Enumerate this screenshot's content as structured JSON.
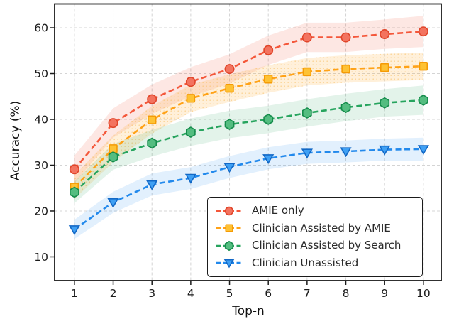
{
  "figure": {
    "background": "#ffffff",
    "text_color": "#1a1a1a",
    "grid_color": "#d4d4d4",
    "spine_color": "#1a1a1a"
  },
  "chart_data": {
    "type": "line",
    "title": "",
    "xlabel": "Top-n",
    "ylabel": "Accuracy (%)",
    "x": [
      1,
      2,
      3,
      4,
      5,
      6,
      7,
      8,
      9,
      10
    ],
    "xticks": [
      1,
      2,
      3,
      4,
      5,
      6,
      7,
      8,
      9,
      10
    ],
    "yticks": [
      10,
      20,
      30,
      40,
      50,
      60
    ],
    "xlim": [
      0.49,
      10.46
    ],
    "ylim": [
      4.8,
      65.2
    ],
    "grid": true,
    "line_style": "dashed",
    "legend_position": "lower right",
    "series": [
      {
        "name": "AMIE only",
        "marker": "circle",
        "color": "#f4573a",
        "marker_fill": "#f3735f",
        "marker_edge": "#e0452a",
        "band_color": "rgba(244,87,58,0.14)",
        "values": [
          29.1,
          39.2,
          44.4,
          48.2,
          51.0,
          55.1,
          57.9,
          57.9,
          58.6,
          59.2
        ],
        "band_halfwidth": [
          3.0,
          3.2,
          3.2,
          3.2,
          3.2,
          3.2,
          3.2,
          3.2,
          3.2,
          3.4
        ]
      },
      {
        "name": "Clinician Assisted by AMIE",
        "marker": "square",
        "color": "#ffa217",
        "marker_fill": "#fec234",
        "marker_edge": "#f59b05",
        "band_color": "rgba(255,162,23,0.16)",
        "hatch": "dots",
        "hatch_color": "rgba(245,185,90,0.55)",
        "values": [
          25.2,
          33.6,
          39.9,
          44.6,
          46.8,
          48.8,
          50.4,
          51.0,
          51.3,
          51.6
        ],
        "band_halfwidth": [
          2.6,
          2.9,
          3.0,
          3.0,
          3.0,
          3.0,
          3.0,
          3.0,
          3.0,
          3.0
        ]
      },
      {
        "name": "Clinician Assisted by Search",
        "marker": "hexagon",
        "color": "#27a45e",
        "marker_fill": "#54bd80",
        "marker_edge": "#168c4c",
        "band_color": "rgba(39,164,94,0.13)",
        "values": [
          24.1,
          31.8,
          34.8,
          37.2,
          38.9,
          40.0,
          41.4,
          42.6,
          43.6,
          44.2
        ],
        "band_halfwidth": [
          2.4,
          2.8,
          2.9,
          3.0,
          3.0,
          3.0,
          3.0,
          3.0,
          3.0,
          3.2
        ]
      },
      {
        "name": "Clinician Unassisted",
        "marker": "triangle-down",
        "color": "#2289ec",
        "marker_fill": "#3fa0f4",
        "marker_edge": "#1268c6",
        "band_color": "rgba(34,137,236,0.13)",
        "values": [
          16.0,
          21.9,
          25.8,
          27.2,
          29.6,
          31.5,
          32.7,
          33.0,
          33.4,
          33.5
        ],
        "band_halfwidth": [
          2.1,
          2.3,
          2.4,
          2.4,
          2.4,
          2.4,
          2.4,
          2.4,
          2.4,
          2.5
        ]
      }
    ]
  }
}
